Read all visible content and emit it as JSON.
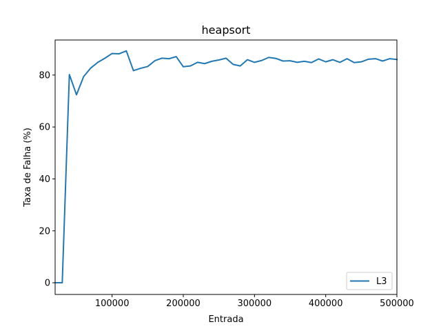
{
  "chart_data": {
    "type": "line",
    "title": "heapsort",
    "xlabel": "Entrada",
    "ylabel": "Taxa de Falha (%)",
    "xlim": [
      20000,
      500000
    ],
    "ylim": [
      -4.5,
      93.5
    ],
    "xticks": [
      100000,
      200000,
      300000,
      400000,
      500000
    ],
    "yticks": [
      0,
      20,
      40,
      60,
      80
    ],
    "legend_position": "lower-right",
    "series": [
      {
        "name": "L3",
        "color": "#1f77b4",
        "x": [
          20000,
          30000,
          40000,
          50000,
          60000,
          70000,
          80000,
          90000,
          100000,
          110000,
          120000,
          130000,
          140000,
          150000,
          160000,
          170000,
          180000,
          190000,
          200000,
          210000,
          220000,
          230000,
          240000,
          250000,
          260000,
          270000,
          280000,
          290000,
          300000,
          310000,
          320000,
          330000,
          340000,
          350000,
          360000,
          370000,
          380000,
          390000,
          400000,
          410000,
          420000,
          430000,
          440000,
          450000,
          460000,
          470000,
          480000,
          490000,
          500000
        ],
        "y": [
          0,
          0,
          80.2,
          72.4,
          79.4,
          82.7,
          84.9,
          86.5,
          88.3,
          88.2,
          89.3,
          81.7,
          82.6,
          83.3,
          85.5,
          86.5,
          86.3,
          87.1,
          83.2,
          83.5,
          84.9,
          84.4,
          85.3,
          85.8,
          86.5,
          84.1,
          83.5,
          85.9,
          84.9,
          85.6,
          86.8,
          86.4,
          85.4,
          85.5,
          84.9,
          85.3,
          84.8,
          86.2,
          85.1,
          85.9,
          84.9,
          86.3,
          84.8,
          85.1,
          86.1,
          86.3,
          85.4,
          86.3,
          86.0
        ]
      }
    ]
  }
}
